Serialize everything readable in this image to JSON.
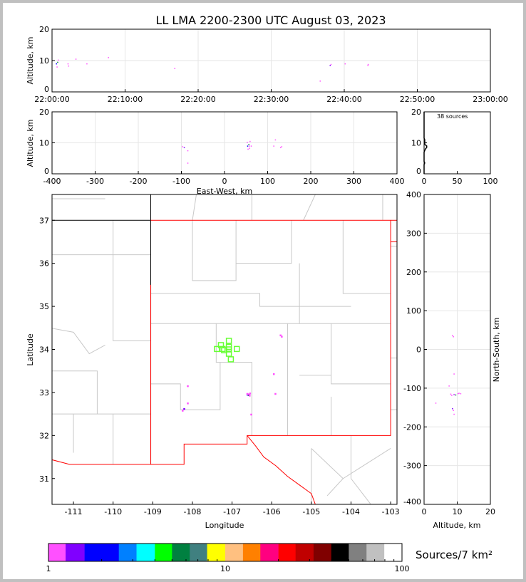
{
  "chart_data": {
    "type": "scatter",
    "title": "LL LMA 2200-2300 UTC August 03, 2023",
    "source_count_label": "38 sources",
    "colorbar": {
      "label": "Sources/7 km²",
      "range": [
        1,
        100
      ],
      "scale": "log",
      "tick_labels": [
        "1",
        "10",
        "100"
      ],
      "colors": [
        "#ff50ff",
        "#8000ff",
        "#0000ff",
        "#0080ff",
        "#00ffff",
        "#00ff00",
        "#008040",
        "#408080",
        "#ffff00",
        "#ffc080",
        "#ff8000",
        "#ff0080",
        "#ff0000",
        "#c00000",
        "#800000",
        "#000000",
        "#808080",
        "#c0c0c0",
        "#ffffff"
      ]
    },
    "time_height": {
      "ylabel": "Altitude, km",
      "ylim": [
        0,
        20
      ],
      "xlim": [
        "22:00:00",
        "23:00:00"
      ],
      "x_tick_labels": [
        "22:00:00",
        "22:10:00",
        "22:20:00",
        "22:30:00",
        "22:40:00",
        "22:50:00",
        "23:00:00"
      ],
      "y_tick_labels": [
        "0",
        "10",
        "20"
      ],
      "grid": true
    },
    "ew_height": {
      "xlabel": "East-West, km",
      "ylabel": "Altitude, km",
      "xlim": [
        -400,
        400
      ],
      "ylim": [
        0,
        20
      ],
      "x_tick_labels": [
        "-400",
        "-300",
        "-200",
        "-100",
        "0",
        "100",
        "200",
        "300",
        "400"
      ],
      "y_tick_labels": [
        "0",
        "10",
        "20"
      ],
      "grid": true
    },
    "histogram": {
      "xlim": [
        0,
        100
      ],
      "ylim": [
        0,
        20
      ],
      "x_tick_labels": [
        "0",
        "50",
        "100"
      ],
      "y_tick_labels": [
        "0",
        "10",
        "20"
      ]
    },
    "plan_view": {
      "xlabel": "Longitude",
      "ylabel": "Latitude",
      "xlim": [
        -111.54,
        -102.84
      ],
      "ylim": [
        30.4,
        37.6
      ],
      "x_tick_labels": [
        "-111",
        "-110",
        "-109",
        "-108",
        "-107",
        "-106",
        "-105",
        "-104",
        "-103"
      ],
      "y_tick_labels": [
        "31",
        "32",
        "33",
        "34",
        "35",
        "36",
        "37"
      ],
      "border_color": "#ff0000",
      "county_color": "#c8c8c8",
      "station_color": "#66ff33"
    },
    "ns_height": {
      "xlabel": "Altitude, km",
      "ylabel": "North-South, km",
      "xlim": [
        0,
        20
      ],
      "ylim": [
        -400,
        400
      ],
      "x_tick_labels": [
        "0",
        "10",
        "20"
      ],
      "y_tick_labels": [
        "-400",
        "-300",
        "-200",
        "-100",
        "0",
        "100",
        "200",
        "300",
        "400"
      ],
      "grid": true
    },
    "stations": [
      {
        "lon": -107.28,
        "lat": 34.1
      },
      {
        "lon": -107.08,
        "lat": 34.2
      },
      {
        "lon": -107.08,
        "lat": 34.06
      },
      {
        "lon": -107.38,
        "lat": 34.01
      },
      {
        "lon": -107.24,
        "lat": 34.01
      },
      {
        "lon": -107.08,
        "lat": 34.0
      },
      {
        "lon": -106.88,
        "lat": 34.01
      },
      {
        "lon": -107.2,
        "lat": 33.98
      },
      {
        "lon": -107.08,
        "lat": 33.9
      },
      {
        "lon": -107.03,
        "lat": 33.77
      }
    ],
    "sources": [
      {
        "time": "22:00:35",
        "lon": -106.61,
        "lat": 32.95,
        "alt": 9.0,
        "color": "#0000ff"
      },
      {
        "time": "22:00:40",
        "lon": -106.6,
        "lat": 32.96,
        "alt": 8.0,
        "color": "#ff50ff"
      },
      {
        "time": "22:00:45",
        "lon": -106.58,
        "lat": 32.94,
        "alt": 9.5,
        "color": "#008040"
      },
      {
        "time": "22:00:50",
        "lon": -106.62,
        "lat": 32.97,
        "alt": 10.2,
        "color": "#ff50ff"
      },
      {
        "time": "22:02:10",
        "lon": -106.57,
        "lat": 32.95,
        "alt": 9.0,
        "color": "#ff50ff"
      },
      {
        "time": "22:02:15",
        "lon": -106.56,
        "lat": 32.93,
        "alt": 8.3,
        "color": "#ff50ff"
      },
      {
        "time": "22:03:15",
        "lon": -106.55,
        "lat": 32.98,
        "alt": 10.5,
        "color": "#ff50ff"
      },
      {
        "time": "22:04:45",
        "lon": -106.52,
        "lat": 32.49,
        "alt": 9.0,
        "color": "#ff50ff"
      },
      {
        "time": "22:07:42",
        "lon": -105.91,
        "lat": 32.97,
        "alt": 11.0,
        "color": "#ff50ff"
      },
      {
        "time": "22:16:47",
        "lon": -108.12,
        "lat": 33.15,
        "alt": 7.5,
        "color": "#ff50ff"
      },
      {
        "time": "22:36:41",
        "lon": -108.12,
        "lat": 32.75,
        "alt": 3.5,
        "color": "#ff50ff"
      },
      {
        "time": "22:38:03",
        "lon": -108.21,
        "lat": 32.62,
        "alt": 8.5,
        "color": "#8000ff"
      },
      {
        "time": "22:38:10",
        "lon": -108.25,
        "lat": 32.58,
        "alt": 8.8,
        "color": "#ff50ff"
      },
      {
        "time": "22:40:06",
        "lon": -105.95,
        "lat": 33.43,
        "alt": 9.0,
        "color": "#ff50ff"
      },
      {
        "time": "22:43:13",
        "lon": -105.78,
        "lat": 34.33,
        "alt": 8.5,
        "color": "#ff50ff"
      },
      {
        "time": "22:43:15",
        "lon": -105.75,
        "lat": 34.3,
        "alt": 8.8,
        "color": "#ff50ff"
      }
    ]
  }
}
